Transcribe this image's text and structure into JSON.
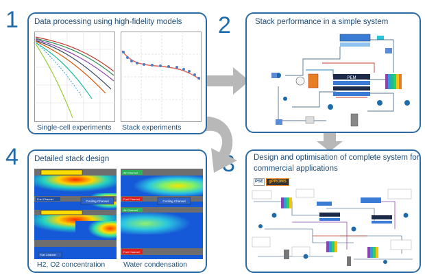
{
  "steps": {
    "s1": {
      "num": "1",
      "title": "Data processing using high-fidelity models",
      "cap_left": "Single-cell experiments",
      "cap_right": "Stack experiments"
    },
    "s2": {
      "num": "2",
      "title": "Stack performance  in a simple system"
    },
    "s3": {
      "num": "3",
      "title_line1": "Design and optimisation of complete system for",
      "title_line2": "commercial applications"
    },
    "s4": {
      "num": "4",
      "title": "Detailed stack design",
      "cap_left": "H2, O2 concentration",
      "cap_right": "Water condensation"
    }
  },
  "diagram_labels": {
    "pem": "PEM",
    "fuel_channel": "Fuel Channel",
    "cooling_channel": "Cooling Channel",
    "air_channel": "Air Channel"
  },
  "logos": {
    "pse": "PSE",
    "gproms": "gPROMS"
  },
  "colors": {
    "border": "#2b6aa3",
    "text": "#1f4e79",
    "arrow": "#b8b8b8"
  }
}
